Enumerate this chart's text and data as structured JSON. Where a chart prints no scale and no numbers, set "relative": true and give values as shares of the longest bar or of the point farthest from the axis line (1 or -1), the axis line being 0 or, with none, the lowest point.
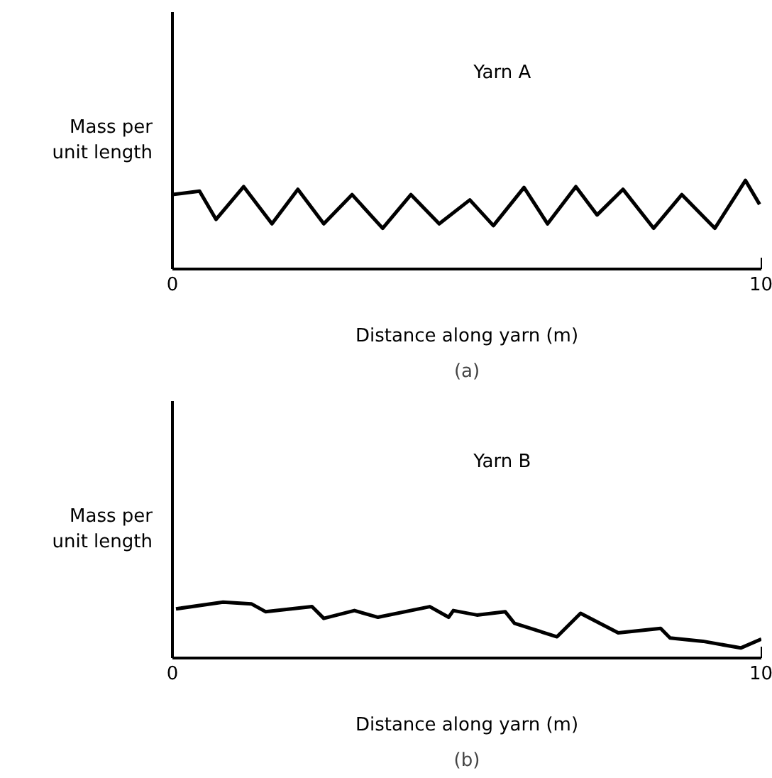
{
  "chart_data": [
    {
      "type": "line",
      "relative": true,
      "xlabel": "Distance along yarn (m)",
      "ylabel": "Mass per unit length",
      "xlim": [
        0,
        10
      ],
      "xticks": [
        0,
        10
      ],
      "tick_labels": "x",
      "annotations": [
        "(a)"
      ],
      "series": [
        {
          "name": "Yarn A",
          "color": "#000000",
          "x": [
            0,
            0.46,
            0.74,
            1.21,
            1.69,
            2.13,
            2.57,
            3.05,
            3.57,
            4.05,
            4.53,
            5.05,
            5.45,
            5.97,
            6.37,
            6.85,
            7.21,
            7.65,
            8.17,
            8.65,
            9.21,
            9.73,
            9.97
          ],
          "values": [
            0.84,
            0.88,
            0.56,
            0.93,
            0.51,
            0.9,
            0.51,
            0.84,
            0.46,
            0.84,
            0.51,
            0.78,
            0.49,
            0.92,
            0.51,
            0.93,
            0.61,
            0.9,
            0.46,
            0.84,
            0.46,
            1,
            0.73
          ]
        }
      ]
    },
    {
      "type": "line",
      "relative": true,
      "xlabel": "Distance along yarn (m)",
      "ylabel": "Mass per unit length",
      "xlim": [
        0,
        10
      ],
      "xticks": [
        0,
        10
      ],
      "tick_labels": "x",
      "annotations": [
        "(b)"
      ],
      "series": [
        {
          "name": "Yarn B",
          "color": "#000000",
          "x": [
            0.06,
            0.86,
            1.34,
            1.58,
            2.37,
            2.57,
            3.09,
            3.49,
            4.37,
            4.69,
            4.77,
            5.17,
            5.65,
            5.81,
            6.53,
            6.93,
            7.57,
            8.29,
            8.45,
            9.01,
            9.65,
            10
          ],
          "values": [
            0.88,
            1,
            0.97,
            0.83,
            0.92,
            0.71,
            0.85,
            0.73,
            0.92,
            0.73,
            0.85,
            0.77,
            0.83,
            0.62,
            0.38,
            0.8,
            0.45,
            0.53,
            0.36,
            0.3,
            0.18,
            0.34
          ]
        }
      ]
    }
  ]
}
